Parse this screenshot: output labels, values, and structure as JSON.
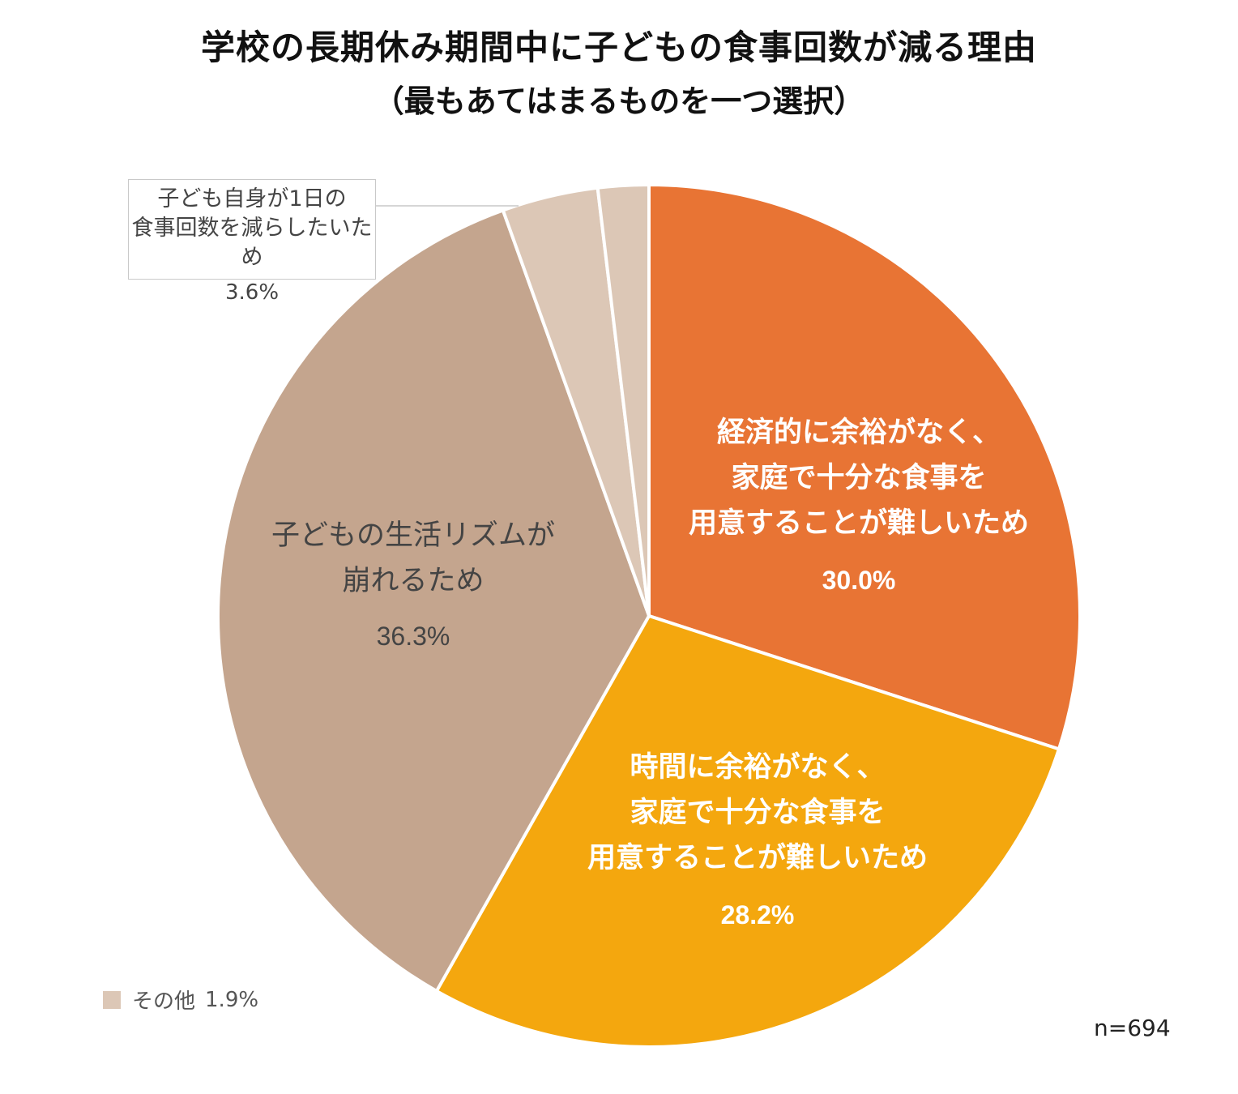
{
  "header": {
    "title": "学校の長期休み期間中に子どもの食事回数が減る理由",
    "subtitle": "（最もあてはまるものを一つ選択）"
  },
  "chart_data": {
    "type": "pie",
    "title": "学校の長期休み期間中に子どもの食事回数が減る理由",
    "subtitle": "（最もあてはまるものを一つ選択）",
    "start": "12 o'clock, clockwise",
    "slices": [
      {
        "lines": [
          "経済的に余裕がなく、",
          "家庭で十分な食事を",
          "用意することが難しいため"
        ],
        "value": 30.0,
        "value_label": "30.0%",
        "color": "#e87434",
        "text_color": "#ffffff",
        "bold": true
      },
      {
        "lines": [
          "時間に余裕がなく、",
          "家庭で十分な食事を",
          "用意することが難しいため"
        ],
        "value": 28.2,
        "value_label": "28.2%",
        "color": "#f4a70e",
        "text_color": "#ffffff",
        "bold": true
      },
      {
        "lines": [
          "子どもの生活リズムが",
          "崩れるため"
        ],
        "value": 36.3,
        "value_label": "36.3%",
        "color": "#c4a58e",
        "text_color": "#444444",
        "bold": false
      },
      {
        "lines": [
          "子ども自身が1日の",
          "食事回数を減らしたいため"
        ],
        "value": 3.6,
        "value_label": "3.6%",
        "color": "#dcc7b6",
        "text_color": "#444444",
        "bold": false
      },
      {
        "lines": [
          "その他"
        ],
        "value": 1.9,
        "value_label": "1.9%",
        "color": "#dcc7b6",
        "text_color": "#555555",
        "bold": false
      }
    ],
    "callout": {
      "line1": "子ども自身が1日の",
      "line2": "食事回数を減らしたいため",
      "value": "3.6%"
    },
    "legend": {
      "label": "その他",
      "value": "1.9%",
      "color": "#dcc7b6"
    },
    "sample_size": "n=694"
  }
}
